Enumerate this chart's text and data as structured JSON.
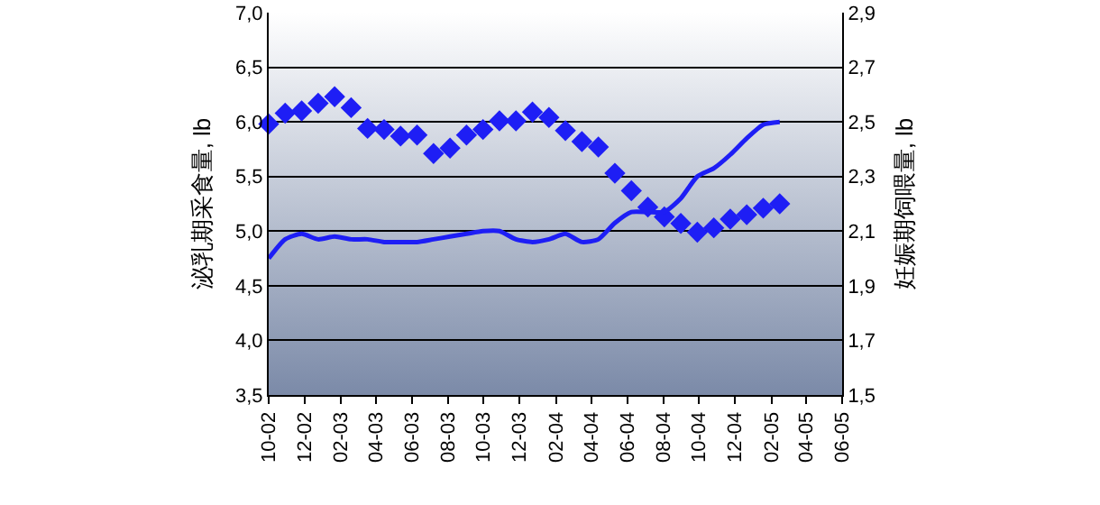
{
  "chart_data": {
    "type": "line",
    "ylabel": "泌乳期采食量, lb",
    "y2label": "妊娠期饲喂量, lb",
    "x": [
      "2002-10-01",
      "2002-10-29",
      "2002-11-26",
      "2002-12-24",
      "2003-01-21",
      "2003-02-18",
      "2003-03-18",
      "2003-04-15",
      "2003-05-13",
      "2003-06-10",
      "2003-07-08",
      "2003-08-05",
      "2003-09-02",
      "2003-09-30",
      "2003-10-28",
      "2003-11-25",
      "2003-12-23",
      "2004-01-20",
      "2004-02-17",
      "2004-03-16",
      "2004-04-13",
      "2004-05-11",
      "2004-06-08",
      "2004-07-06",
      "2004-08-03",
      "2004-08-31",
      "2004-09-28",
      "2004-10-26",
      "2004-11-23",
      "2004-12-21",
      "2005-01-18",
      "2005-02-15"
    ],
    "series": [
      {
        "type": "scatter",
        "marker": "diamond",
        "color": "#1e1ef5",
        "values": [
          5.98,
          6.08,
          6.1,
          6.17,
          6.23,
          6.13,
          5.94,
          5.93,
          5.87,
          5.88,
          5.71,
          5.76,
          5.88,
          5.93,
          6.01,
          6.01,
          6.09,
          6.04,
          5.92,
          5.82,
          5.77,
          5.53,
          5.37,
          5.22,
          5.13,
          5.07,
          4.99,
          5.03,
          5.11,
          5.15,
          5.21,
          5.25
        ]
      },
      {
        "marker": "none",
        "axis": "y2",
        "color": "#1e1ef5",
        "values": [
          2.0,
          2.07,
          2.09,
          2.07,
          2.08,
          2.07,
          2.07,
          2.06,
          2.06,
          2.06,
          2.07,
          2.08,
          2.09,
          2.1,
          2.1,
          2.07,
          2.06,
          2.07,
          2.09,
          2.06,
          2.07,
          2.13,
          2.17,
          2.17,
          2.17,
          2.22,
          2.3,
          2.33,
          2.38,
          2.44,
          2.49,
          2.5
        ]
      }
    ],
    "xlim": [
      "2002-10-01",
      "2005-06-01"
    ],
    "xticks": [
      {
        "value": "2002-10-01",
        "label": "10-02"
      },
      {
        "value": "2002-12-01",
        "label": "12-02"
      },
      {
        "value": "2003-02-01",
        "label": "02-03"
      },
      {
        "value": "2003-04-01",
        "label": "04-03"
      },
      {
        "value": "2003-06-01",
        "label": "06-03"
      },
      {
        "value": "2003-08-01",
        "label": "08-03"
      },
      {
        "value": "2003-10-01",
        "label": "10-03"
      },
      {
        "value": "2003-12-01",
        "label": "12-03"
      },
      {
        "value": "2004-02-01",
        "label": "02-04"
      },
      {
        "value": "2004-04-01",
        "label": "04-04"
      },
      {
        "value": "2004-06-01",
        "label": "06-04"
      },
      {
        "value": "2004-08-01",
        "label": "08-04"
      },
      {
        "value": "2004-10-01",
        "label": "10-04"
      },
      {
        "value": "2004-12-01",
        "label": "12-04"
      },
      {
        "value": "2005-02-01",
        "label": "02-05"
      },
      {
        "value": "2005-04-01",
        "label": "04-05"
      },
      {
        "value": "2005-06-01",
        "label": "06-05"
      }
    ],
    "ylim": [
      3.5,
      7.0
    ],
    "yticks": [
      {
        "value": 3.5,
        "label": "3,5"
      },
      {
        "value": 4.0,
        "label": "4,0"
      },
      {
        "value": 4.5,
        "label": "4,5"
      },
      {
        "value": 5.0,
        "label": "5,0"
      },
      {
        "value": 5.5,
        "label": "5,5"
      },
      {
        "value": 6.0,
        "label": "6,0"
      },
      {
        "value": 6.5,
        "label": "6,5"
      },
      {
        "value": 7.0,
        "label": "7,0"
      }
    ],
    "y2lim": [
      1.5,
      2.9
    ],
    "y2ticks": [
      {
        "value": 1.5,
        "label": "1,5"
      },
      {
        "value": 1.7,
        "label": "1,7"
      },
      {
        "value": 1.9,
        "label": "1,9"
      },
      {
        "value": 2.1,
        "label": "2,1"
      },
      {
        "value": 2.3,
        "label": "2,3"
      },
      {
        "value": 2.5,
        "label": "2,5"
      },
      {
        "value": 2.7,
        "label": "2,7"
      },
      {
        "value": 2.9,
        "label": "2,9"
      }
    ],
    "grid": "y"
  }
}
